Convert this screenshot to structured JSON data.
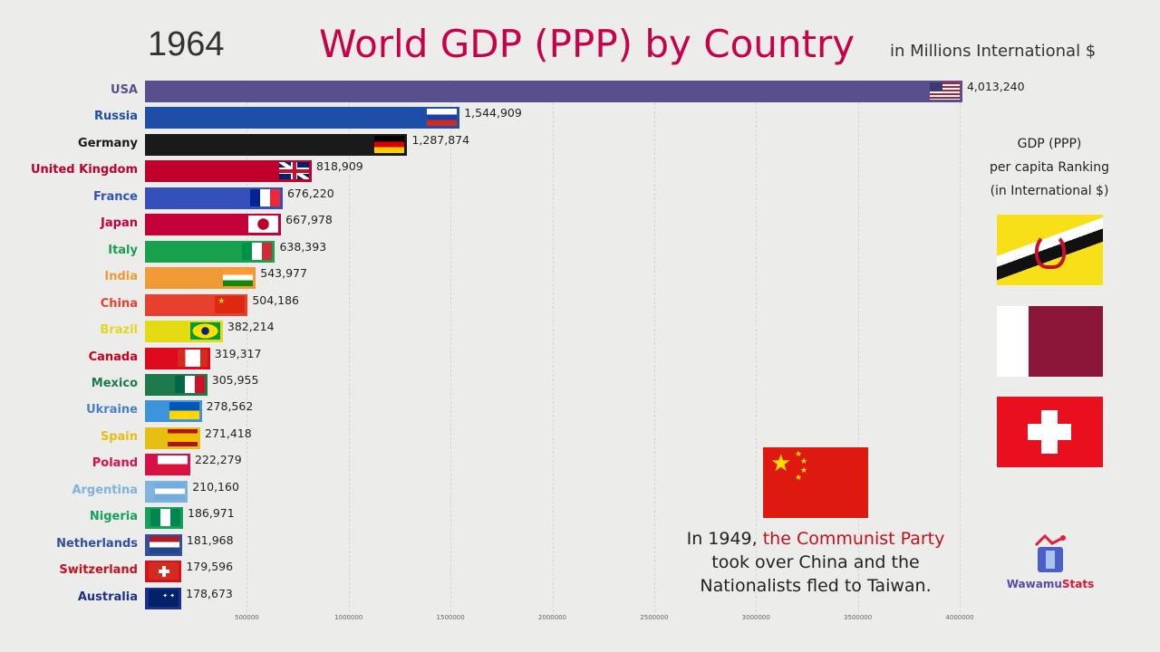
{
  "header": {
    "year": "1964",
    "title": "World GDP (PPP) by Country",
    "units": "in Millions International $"
  },
  "side": {
    "title_lines": [
      "GDP (PPP)",
      "per capita Ranking",
      "(in International $)"
    ]
  },
  "annotation": {
    "prefix": "In 1949, ",
    "highlight": "the Communist Party",
    "line2": "took over China and the",
    "line3": "Nationalists fled to Taiwan."
  },
  "logo": {
    "part1": "Wawamu",
    "part2": "Stats"
  },
  "chart_data": {
    "type": "bar",
    "orientation": "horizontal",
    "title": "World GDP (PPP) by Country",
    "subtitle": "in Millions International $",
    "xlim": [
      0,
      4000000
    ],
    "ticks": [
      500000,
      1000000,
      1500000,
      2000000,
      2500000,
      3000000,
      3500000,
      4000000
    ],
    "tick_labels": [
      "500000",
      "1000000",
      "1500000",
      "2000000",
      "2500000",
      "3000000",
      "3500000",
      "4000000"
    ],
    "categories": [
      "USA",
      "Russia",
      "Germany",
      "United Kingdom",
      "France",
      "Japan",
      "Italy",
      "India",
      "China",
      "Brazil",
      "Canada",
      "Mexico",
      "Ukraine",
      "Spain",
      "Poland",
      "Argentina",
      "Nigeria",
      "Netherlands",
      "Switzerland",
      "Australia"
    ],
    "values": [
      4013240,
      1544909,
      1287874,
      818909,
      676220,
      667978,
      638393,
      543977,
      504186,
      382214,
      319317,
      305955,
      278562,
      271418,
      222279,
      210160,
      186971,
      181968,
      179596,
      178673
    ],
    "value_labels": [
      "4,013,240",
      "1,544,909",
      "1,287,874",
      "818,909",
      "676,220",
      "667,978",
      "638,393",
      "543,977",
      "504,186",
      "382,214",
      "319,317",
      "305,955",
      "278,562",
      "271,418",
      "222,279",
      "210,160",
      "186,971",
      "181,968",
      "179,596",
      "178,673"
    ],
    "colors": [
      "#574f8e",
      "#1f4ea8",
      "#1a1a1a",
      "#c0002a",
      "#3351b8",
      "#c4003a",
      "#19a04c",
      "#f09a36",
      "#e8402e",
      "#e6da14",
      "#dd0a1e",
      "#1d7a4b",
      "#3d94da",
      "#e6bf12",
      "#d8104a",
      "#7eb3e0",
      "#16a05a",
      "#31509c",
      "#d8101e",
      "#1e2f8a"
    ],
    "label_colors": [
      "#574f8e",
      "#1f4ea8",
      "#1a1a1a",
      "#c0002a",
      "#3351b8",
      "#c4003a",
      "#19a04c",
      "#f09a36",
      "#e8402e",
      "#e0d820",
      "#c8001e",
      "#1d7a4b",
      "#4a7fc8",
      "#e6bf12",
      "#d8104a",
      "#7eb3e0",
      "#16a05a",
      "#31509c",
      "#c8101e",
      "#1e2f8a"
    ]
  }
}
